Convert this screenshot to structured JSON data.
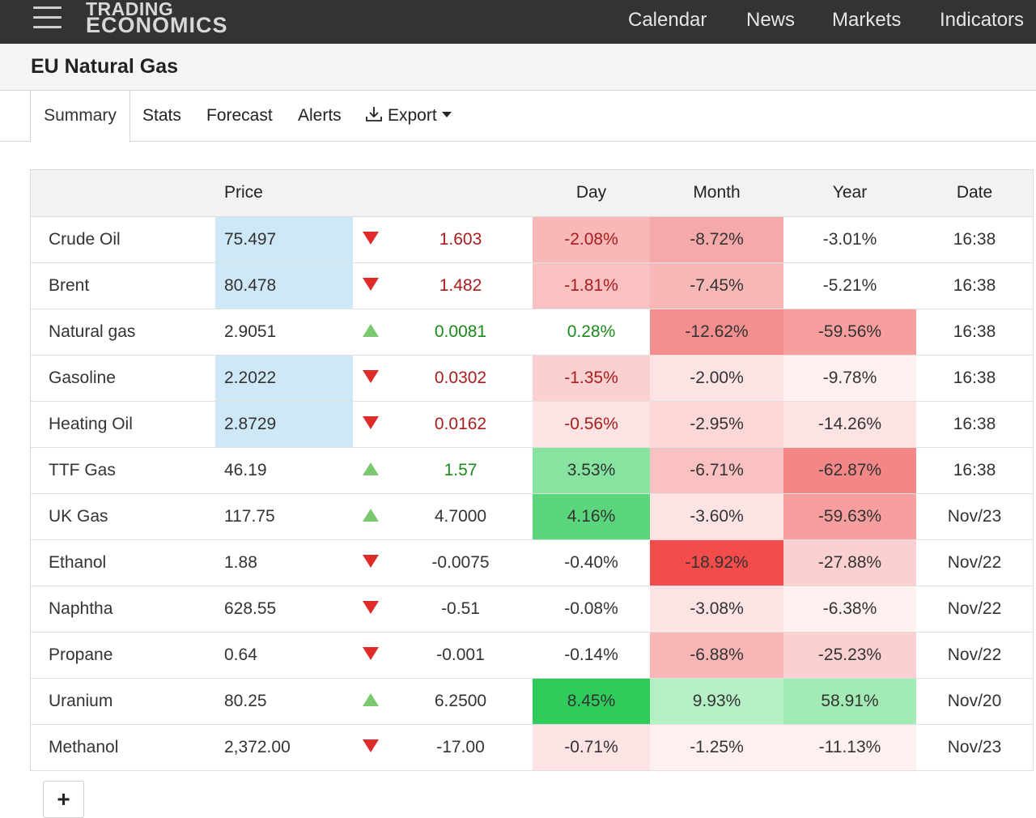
{
  "header": {
    "logo_line1": "TRADING",
    "logo_line2": "ECONOMICS",
    "nav": [
      "Calendar",
      "News",
      "Markets",
      "Indicators"
    ]
  },
  "page": {
    "title": "EU Natural Gas"
  },
  "tabs": {
    "summary": "Summary",
    "stats": "Stats",
    "forecast": "Forecast",
    "alerts": "Alerts",
    "export": "Export"
  },
  "table": {
    "columns": {
      "name": "",
      "price": "Price",
      "arrow": "",
      "change": "",
      "day": "Day",
      "month": "Month",
      "year": "Year",
      "date": "Date"
    },
    "rows": [
      {
        "name": "Crude Oil",
        "price": "75.497",
        "direction": "down",
        "change": "1.603",
        "day": "-2.08%",
        "month": "-8.72%",
        "year": "-3.01%",
        "date": "16:38"
      },
      {
        "name": "Brent",
        "price": "80.478",
        "direction": "down",
        "change": "1.482",
        "day": "-1.81%",
        "month": "-7.45%",
        "year": "-5.21%",
        "date": "16:38"
      },
      {
        "name": "Natural gas",
        "price": "2.9051",
        "direction": "up",
        "change": "0.0081",
        "day": "0.28%",
        "month": "-12.62%",
        "year": "-59.56%",
        "date": "16:38"
      },
      {
        "name": "Gasoline",
        "price": "2.2022",
        "direction": "down",
        "change": "0.0302",
        "day": "-1.35%",
        "month": "-2.00%",
        "year": "-9.78%",
        "date": "16:38"
      },
      {
        "name": "Heating Oil",
        "price": "2.8729",
        "direction": "down",
        "change": "0.0162",
        "day": "-0.56%",
        "month": "-2.95%",
        "year": "-14.26%",
        "date": "16:38"
      },
      {
        "name": "TTF Gas",
        "price": "46.19",
        "direction": "up",
        "change": "1.57",
        "day": "3.53%",
        "month": "-6.71%",
        "year": "-62.87%",
        "date": "16:38"
      },
      {
        "name": "UK Gas",
        "price": "117.75",
        "direction": "up",
        "change": "4.7000",
        "day": "4.16%",
        "month": "-3.60%",
        "year": "-59.63%",
        "date": "Nov/23"
      },
      {
        "name": "Ethanol",
        "price": "1.88",
        "direction": "down",
        "change": "-0.0075",
        "day": "-0.40%",
        "month": "-18.92%",
        "year": "-27.88%",
        "date": "Nov/22"
      },
      {
        "name": "Naphtha",
        "price": "628.55",
        "direction": "down",
        "change": "-0.51",
        "day": "-0.08%",
        "month": "-3.08%",
        "year": "-6.38%",
        "date": "Nov/22"
      },
      {
        "name": "Propane",
        "price": "0.64",
        "direction": "down",
        "change": "-0.001",
        "day": "-0.14%",
        "month": "-6.88%",
        "year": "-25.23%",
        "date": "Nov/22"
      },
      {
        "name": "Uranium",
        "price": "80.25",
        "direction": "up",
        "change": "6.2500",
        "day": "8.45%",
        "month": "9.93%",
        "year": "58.91%",
        "date": "Nov/20"
      },
      {
        "name": "Methanol",
        "price": "2,372.00",
        "direction": "down",
        "change": "-17.00",
        "day": "-0.71%",
        "month": "-1.25%",
        "year": "-11.13%",
        "date": "Nov/23"
      }
    ]
  },
  "controls": {
    "add_label": "+"
  }
}
